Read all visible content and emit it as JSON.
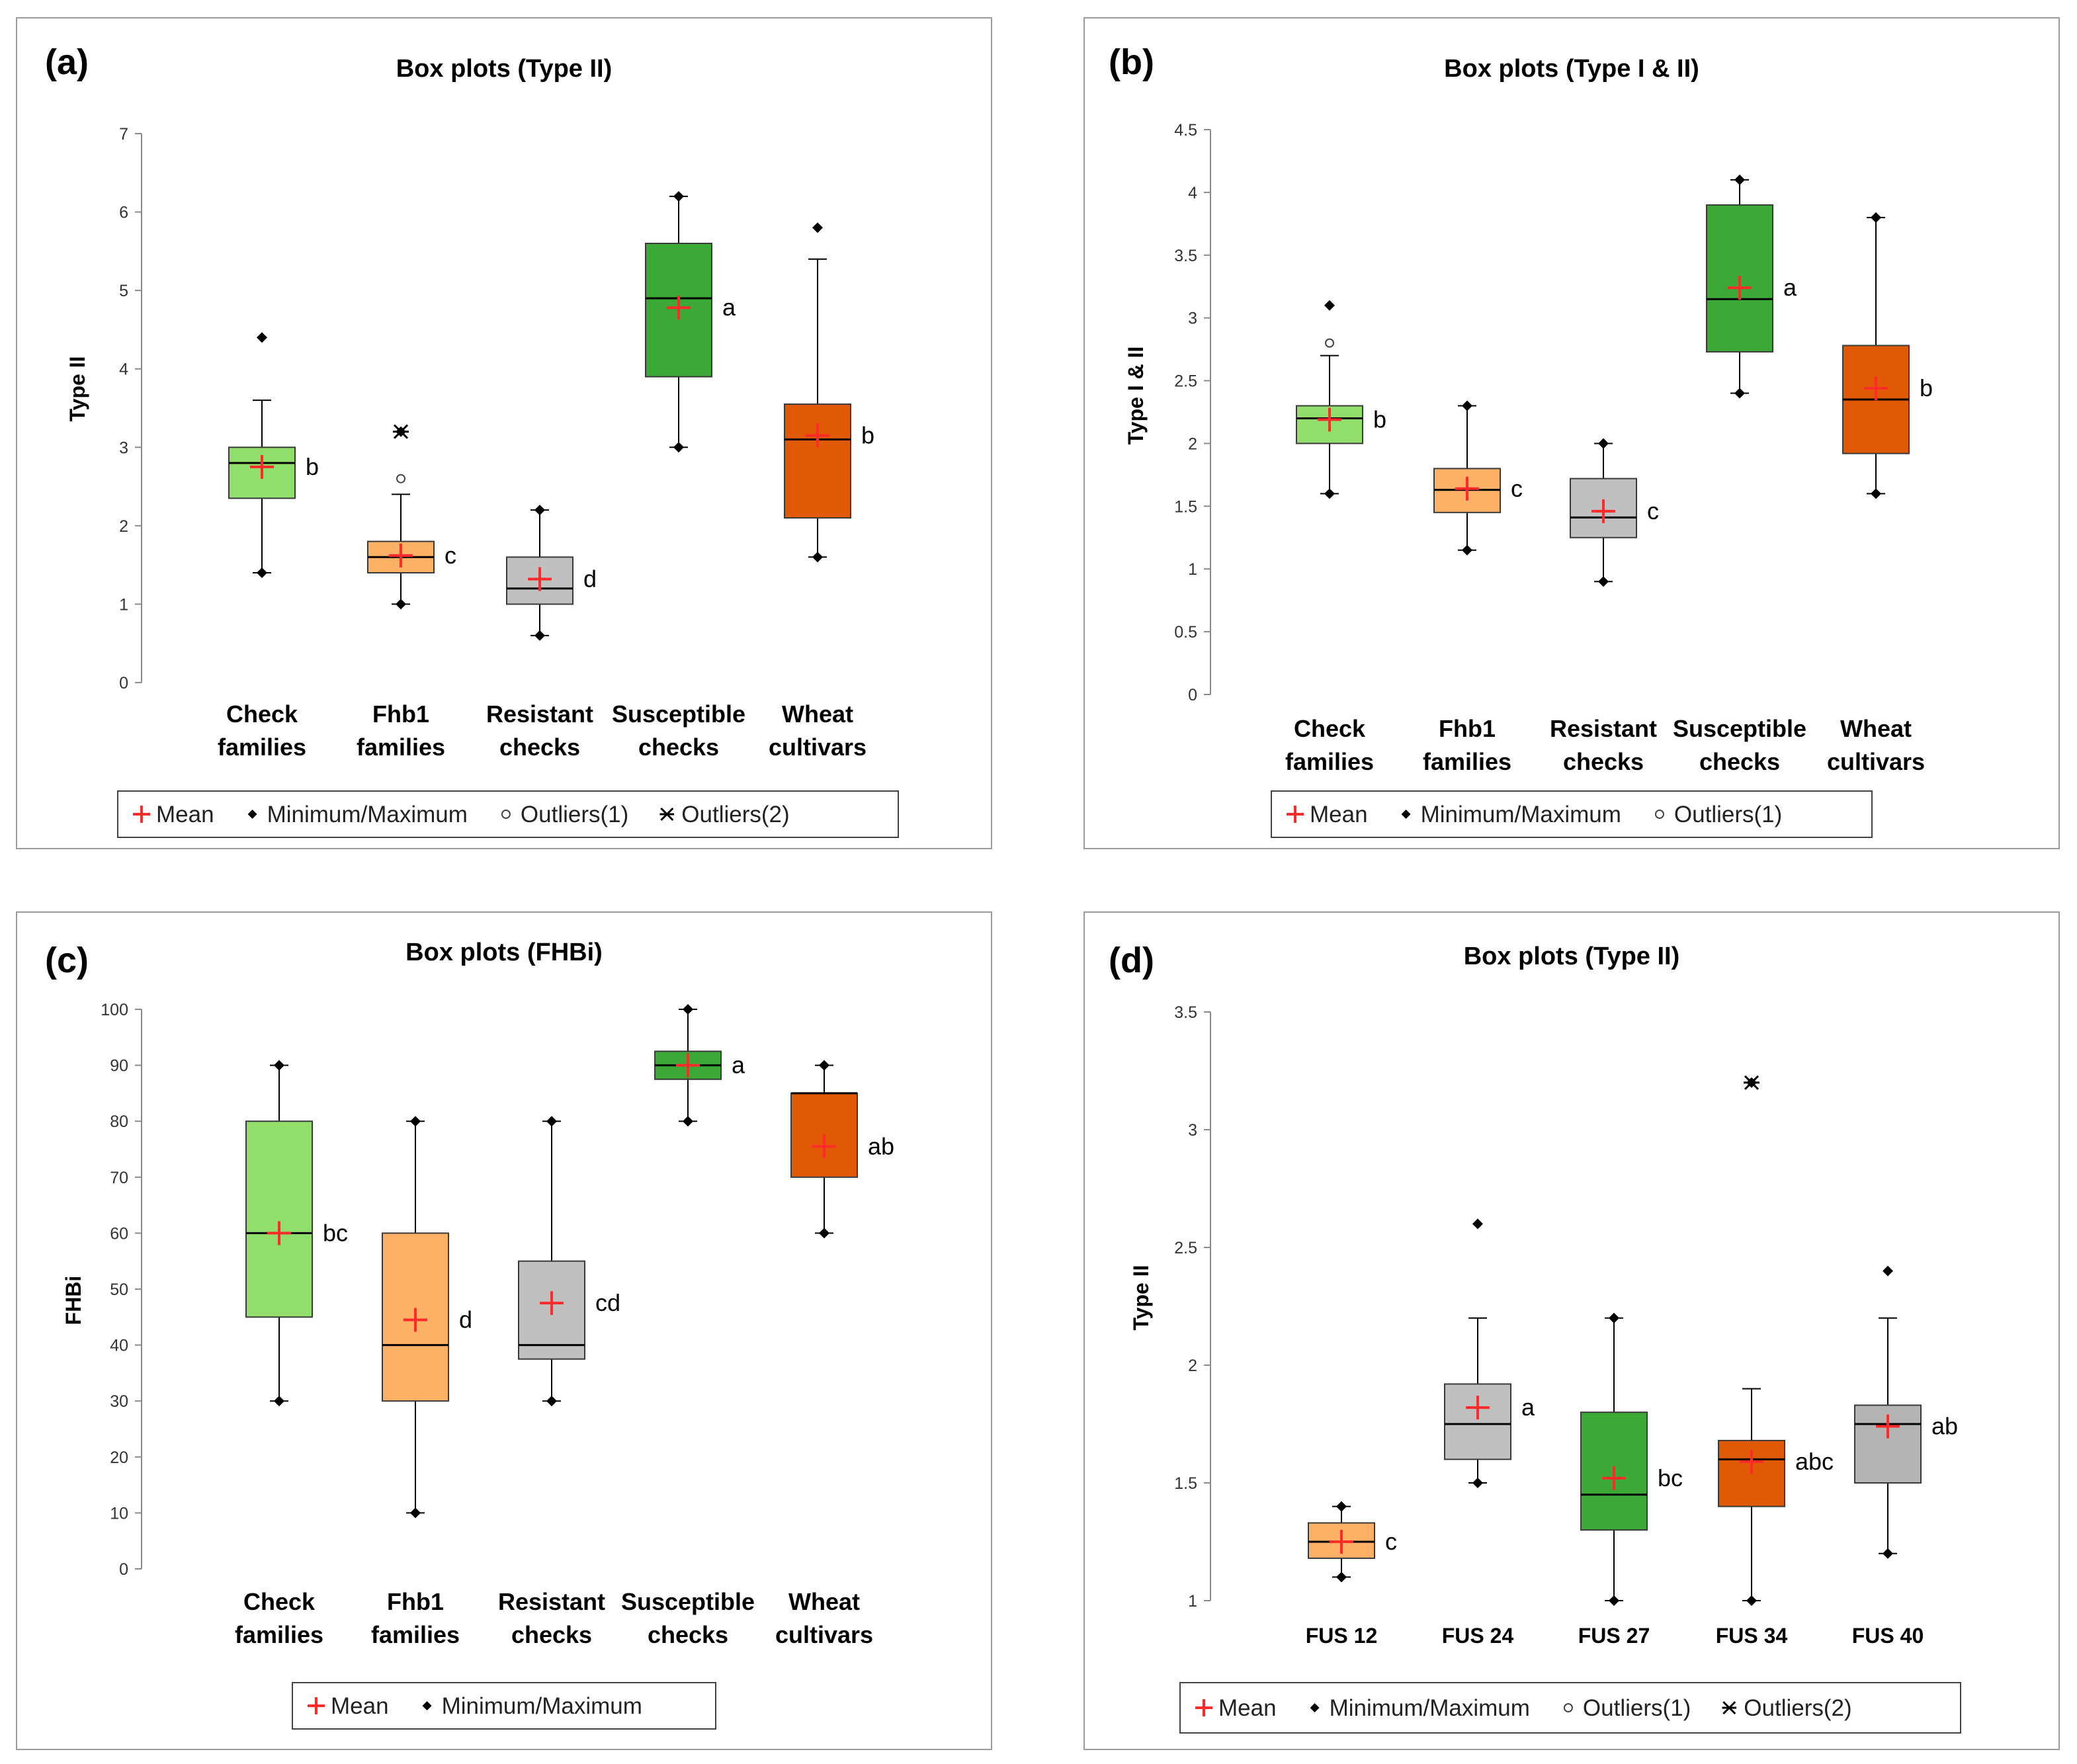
{
  "legend_labels": {
    "mean": "Mean",
    "minmax": "Minimum/Maximum",
    "out1": "Outliers(1)",
    "out2": "Outliers(2)"
  },
  "chart_data": [
    {
      "id": "a",
      "panel_label": "(a)",
      "type": "boxplot",
      "title": "Box plots (Type II)",
      "ylabel": "Type II",
      "ylim": [
        0,
        7
      ],
      "ytick_step": 1,
      "ytick_decimals": 0,
      "legend": [
        "mean",
        "minmax",
        "out1",
        "out2"
      ],
      "groups": [
        {
          "label": [
            "Check",
            "families"
          ],
          "color": "#92de6c",
          "min": 1.4,
          "q1": 2.35,
          "median": 2.8,
          "q3": 3.0,
          "whisker_low": 1.4,
          "whisker_high": 3.6,
          "mean": 2.75,
          "maximum": 4.4,
          "outliers1": [],
          "outliers2": [],
          "sig": "b"
        },
        {
          "label": [
            "Fhb1",
            "families"
          ],
          "color": "#fdb167",
          "min": 1.0,
          "q1": 1.4,
          "median": 1.6,
          "q3": 1.8,
          "whisker_low": 1.0,
          "whisker_high": 2.4,
          "mean": 1.62,
          "maximum": 3.2,
          "outliers1": [
            2.6
          ],
          "outliers2": [
            3.2
          ],
          "sig": "c"
        },
        {
          "label": [
            "Resistant",
            "checks"
          ],
          "color": "#c0c0c0",
          "min": 0.6,
          "q1": 1.0,
          "median": 1.2,
          "q3": 1.6,
          "whisker_low": 0.6,
          "whisker_high": 2.2,
          "mean": 1.32,
          "maximum": 2.2,
          "outliers1": [],
          "outliers2": [],
          "sig": "d"
        },
        {
          "label": [
            "Susceptible",
            "checks"
          ],
          "color": "#3ca835",
          "min": 3.0,
          "q1": 3.9,
          "median": 4.9,
          "q3": 5.6,
          "whisker_low": 3.0,
          "whisker_high": 6.2,
          "mean": 4.78,
          "maximum": 6.2,
          "outliers1": [],
          "outliers2": [],
          "sig": "a"
        },
        {
          "label": [
            "Wheat",
            "cultivars"
          ],
          "color": "#e05a06",
          "min": 1.6,
          "q1": 2.1,
          "median": 3.1,
          "q3": 3.55,
          "whisker_low": 1.6,
          "whisker_high": 5.4,
          "mean": 3.15,
          "maximum": 5.8,
          "outliers1": [],
          "outliers2": [],
          "sig": "b"
        }
      ]
    },
    {
      "id": "b",
      "panel_label": "(b)",
      "type": "boxplot",
      "title": "Box plots (Type I & II)",
      "ylabel": "Type I & II",
      "ylim": [
        0,
        4.5
      ],
      "ytick_step": 0.5,
      "ytick_decimals": 1,
      "legend": [
        "mean",
        "minmax",
        "out1"
      ],
      "groups": [
        {
          "label": [
            "Check",
            "families"
          ],
          "color": "#92de6c",
          "min": 1.6,
          "q1": 2.0,
          "median": 2.2,
          "q3": 2.3,
          "whisker_low": 1.6,
          "whisker_high": 2.7,
          "mean": 2.19,
          "maximum": 3.1,
          "outliers1": [
            2.8
          ],
          "outliers2": [],
          "sig": "b"
        },
        {
          "label": [
            "Fhb1",
            "families"
          ],
          "color": "#fdb167",
          "min": 1.15,
          "q1": 1.45,
          "median": 1.63,
          "q3": 1.8,
          "whisker_low": 1.15,
          "whisker_high": 2.3,
          "mean": 1.64,
          "maximum": 2.3,
          "outliers1": [],
          "outliers2": [],
          "sig": "c"
        },
        {
          "label": [
            "Resistant",
            "checks"
          ],
          "color": "#c0c0c0",
          "min": 0.9,
          "q1": 1.25,
          "median": 1.41,
          "q3": 1.72,
          "whisker_low": 0.9,
          "whisker_high": 2.0,
          "mean": 1.46,
          "maximum": 2.0,
          "outliers1": [],
          "outliers2": [],
          "sig": "c"
        },
        {
          "label": [
            "Susceptible",
            "checks"
          ],
          "color": "#3ca835",
          "min": 2.4,
          "q1": 2.73,
          "median": 3.15,
          "q3": 3.9,
          "whisker_low": 2.4,
          "whisker_high": 4.1,
          "mean": 3.24,
          "maximum": 4.1,
          "outliers1": [],
          "outliers2": [],
          "sig": "a"
        },
        {
          "label": [
            "Wheat",
            "cultivars"
          ],
          "color": "#e05a06",
          "min": 1.6,
          "q1": 1.92,
          "median": 2.35,
          "q3": 2.78,
          "whisker_low": 1.6,
          "whisker_high": 3.8,
          "mean": 2.44,
          "maximum": 3.8,
          "outliers1": [],
          "outliers2": [],
          "sig": "b"
        }
      ]
    },
    {
      "id": "c",
      "panel_label": "(c)",
      "type": "boxplot",
      "title": "Box plots (FHBi)",
      "ylabel": "FHBi",
      "ylim": [
        0,
        100
      ],
      "ytick_step": 10,
      "ytick_decimals": 0,
      "legend": [
        "mean",
        "minmax"
      ],
      "groups": [
        {
          "label": [
            "Check",
            "families"
          ],
          "color": "#92de6c",
          "min": 30,
          "q1": 45,
          "median": 60,
          "q3": 80,
          "whisker_low": 30,
          "whisker_high": 90,
          "mean": 60,
          "maximum": 90,
          "outliers1": [],
          "outliers2": [],
          "sig": "bc"
        },
        {
          "label": [
            "Fhb1",
            "families"
          ],
          "color": "#fdb167",
          "min": 10,
          "q1": 30,
          "median": 40,
          "q3": 60,
          "whisker_low": 10,
          "whisker_high": 80,
          "mean": 44.5,
          "maximum": 80,
          "outliers1": [],
          "outliers2": [],
          "sig": "d"
        },
        {
          "label": [
            "Resistant",
            "checks"
          ],
          "color": "#c0c0c0",
          "min": 30,
          "q1": 37.5,
          "median": 40,
          "q3": 55,
          "whisker_low": 30,
          "whisker_high": 80,
          "mean": 47.5,
          "maximum": 80,
          "outliers1": [],
          "outliers2": [],
          "sig": "cd"
        },
        {
          "label": [
            "Susceptible",
            "checks"
          ],
          "color": "#3ca835",
          "min": 80,
          "q1": 87.5,
          "median": 90,
          "q3": 92.5,
          "whisker_low": 80,
          "whisker_high": 100,
          "mean": 90,
          "maximum": 100,
          "outliers1": [],
          "outliers2": [],
          "sig": "a"
        },
        {
          "label": [
            "Wheat",
            "cultivars"
          ],
          "color": "#e05a06",
          "min": 60,
          "q1": 70,
          "median": 85,
          "q3": 85,
          "whisker_low": 60,
          "whisker_high": 90,
          "mean": 75.5,
          "maximum": 90,
          "outliers1": [],
          "outliers2": [],
          "sig": "ab"
        }
      ]
    },
    {
      "id": "d",
      "panel_label": "(d)",
      "type": "boxplot",
      "title": "Box plots (Type II)",
      "ylabel": "Type II",
      "ylim": [
        1,
        3.5
      ],
      "ytick_step": 0.5,
      "ytick_decimals": 1,
      "legend": [
        "mean",
        "minmax",
        "out1",
        "out2"
      ],
      "groups": [
        {
          "label": [
            "FUS 12"
          ],
          "color": "#fdb167",
          "min": 1.1,
          "q1": 1.18,
          "median": 1.25,
          "q3": 1.33,
          "whisker_low": 1.1,
          "whisker_high": 1.4,
          "mean": 1.25,
          "maximum": 1.4,
          "outliers1": [],
          "outliers2": [],
          "sig": "c"
        },
        {
          "label": [
            "FUS 24"
          ],
          "color": "#c0c0c0",
          "min": 1.5,
          "q1": 1.6,
          "median": 1.75,
          "q3": 1.92,
          "whisker_low": 1.5,
          "whisker_high": 2.2,
          "mean": 1.82,
          "maximum": 2.6,
          "outliers1": [],
          "outliers2": [],
          "sig": "a"
        },
        {
          "label": [
            "FUS 27"
          ],
          "color": "#3ca835",
          "min": 1.0,
          "q1": 1.3,
          "median": 1.45,
          "q3": 1.8,
          "whisker_low": 1.0,
          "whisker_high": 2.2,
          "mean": 1.52,
          "maximum": 2.2,
          "outliers1": [],
          "outliers2": [],
          "sig": "bc"
        },
        {
          "label": [
            "FUS 34"
          ],
          "color": "#e05a06",
          "min": 1.0,
          "q1": 1.4,
          "median": 1.6,
          "q3": 1.68,
          "whisker_low": 1.0,
          "whisker_high": 1.9,
          "mean": 1.59,
          "maximum": 3.2,
          "outliers1": [],
          "outliers2": [
            3.2
          ],
          "sig": "abc"
        },
        {
          "label": [
            "FUS 40"
          ],
          "color": "#b4b4b4",
          "min": 1.2,
          "q1": 1.5,
          "median": 1.75,
          "q3": 1.83,
          "whisker_low": 1.2,
          "whisker_high": 2.2,
          "mean": 1.74,
          "maximum": 2.4,
          "outliers1": [],
          "outliers2": [],
          "sig": "ab"
        }
      ]
    }
  ]
}
